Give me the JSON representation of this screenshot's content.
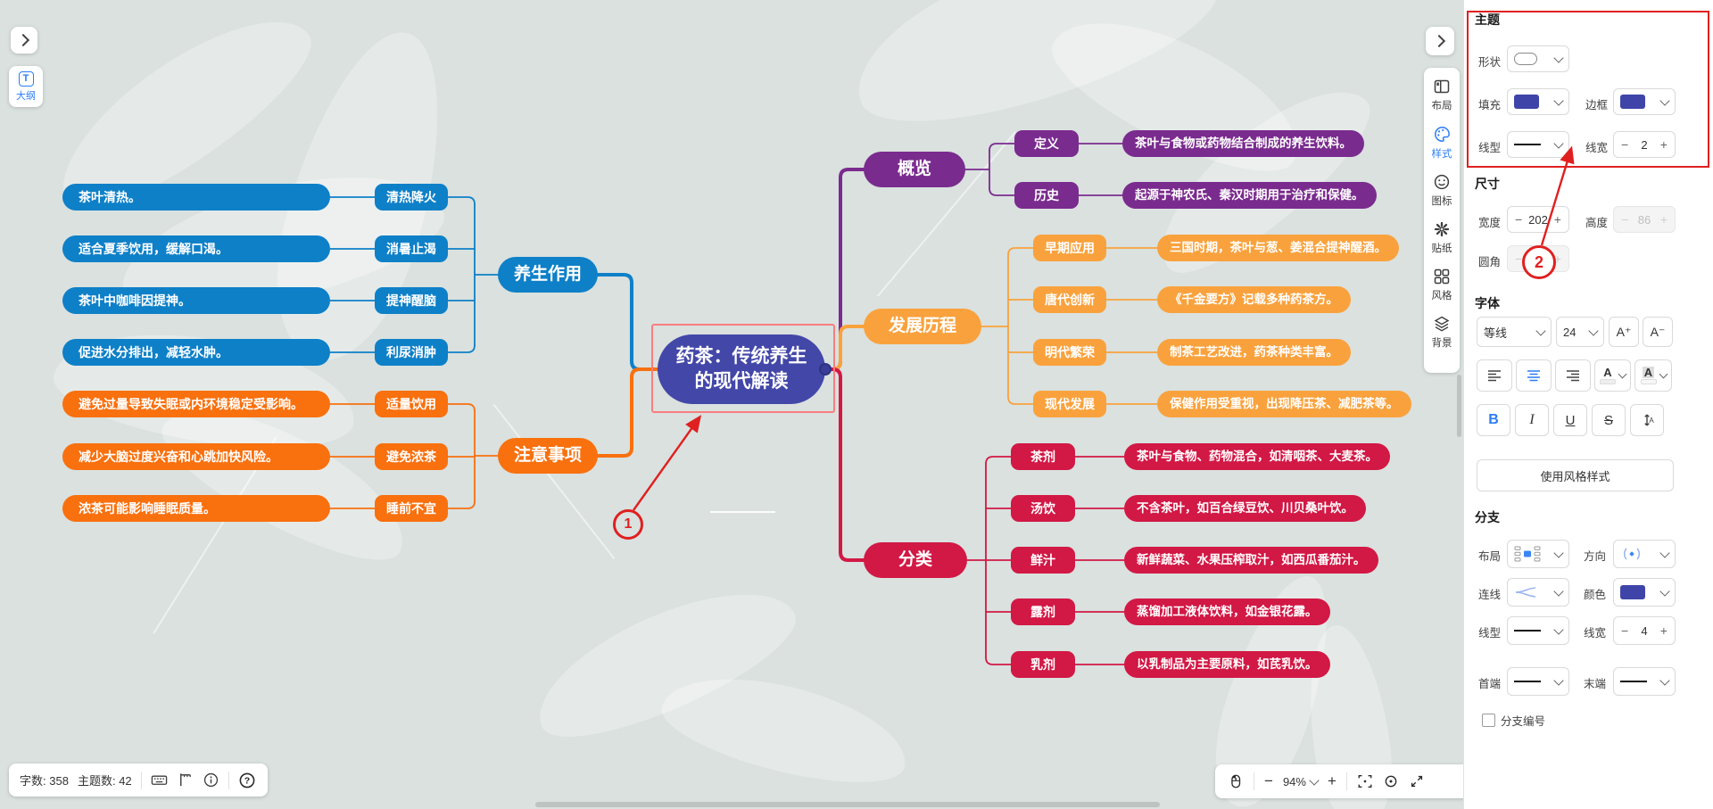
{
  "ui": {
    "minus": "−",
    "plus": "+"
  },
  "outline_button": {
    "icon": "T",
    "label": "大纲"
  },
  "toolbar": {
    "items": [
      {
        "label": "布局"
      },
      {
        "label": "样式",
        "active": true
      },
      {
        "label": "图标"
      },
      {
        "label": "贴纸"
      },
      {
        "label": "风格"
      },
      {
        "label": "背景"
      }
    ]
  },
  "panel": {
    "theme": {
      "title": "主题",
      "shape_label": "形状",
      "fill_label": "填充",
      "border_label": "边框",
      "line_type_label": "线型",
      "line_width_label": "线宽",
      "line_width_value": "2"
    },
    "size": {
      "title": "尺寸",
      "width_label": "宽度",
      "width_value": "202",
      "height_label": "高度",
      "height_value": "86",
      "radius_label": "圆角"
    },
    "font": {
      "title": "字体",
      "family": "等线",
      "size": "24",
      "increase": "A⁺",
      "decrease": "A⁻",
      "bold": "B",
      "italic": "I",
      "underline": "U",
      "strike": "S"
    },
    "use_style_button": "使用风格样式",
    "branch": {
      "title": "分支",
      "layout_label": "布局",
      "direction_label": "方向",
      "line_label": "连线",
      "color_label": "颜色",
      "line_type_label": "线型",
      "line_width_label": "线宽",
      "line_width_value": "4",
      "start_label": "首端",
      "end_label": "末端",
      "numbering_label": "分支编号"
    }
  },
  "status_bar": {
    "word_count_label": "字数:",
    "word_count": "358",
    "topic_count_label": "主题数:",
    "topic_count": "42"
  },
  "zoom_bar": {
    "zoom": "94%"
  },
  "annotations": {
    "mark1": "1",
    "mark2": "2"
  },
  "colors": {
    "accent": "#2B7CF6",
    "fill_swatch": "#3F45A8",
    "annotation_red": "#E02020",
    "selection_red": "#F87E7E",
    "central": "#4347A8",
    "blue": "#0E80C8",
    "orange": "#F9700E",
    "light_orange": "#F9A23D",
    "purple": "#7A2B8E",
    "crimson": "#D21845"
  },
  "mindmap": {
    "central": {
      "text": "药茶：传统养生的现代解读"
    },
    "left_branches": [
      {
        "label": "养生作用",
        "color": "#0E80C8",
        "children": [
          {
            "label": "清热降火",
            "note": "茶叶清热。"
          },
          {
            "label": "消暑止渴",
            "note": "适合夏季饮用，缓解口渴。"
          },
          {
            "label": "提神醒脑",
            "note": "茶叶中咖啡因提神。"
          },
          {
            "label": "利尿消肿",
            "note": "促进水分排出，减轻水肿。"
          }
        ]
      },
      {
        "label": "注意事项",
        "color": "#F9700E",
        "children": [
          {
            "label": "适量饮用",
            "note": "避免过量导致失眠或内环境稳定受影响。"
          },
          {
            "label": "避免浓茶",
            "note": "减少大脑过度兴奋和心跳加快风险。"
          },
          {
            "label": "睡前不宜",
            "note": "浓茶可能影响睡眠质量。"
          }
        ]
      }
    ],
    "right_branches": [
      {
        "label": "概览",
        "color": "#7A2B8E",
        "children": [
          {
            "label": "定义",
            "note": "茶叶与食物或药物结合制成的养生饮料。"
          },
          {
            "label": "历史",
            "note": "起源于神农氏、秦汉时期用于治疗和保健。"
          }
        ]
      },
      {
        "label": "发展历程",
        "color": "#F9A23D",
        "children": [
          {
            "label": "早期应用",
            "note": "三国时期，茶叶与葱、姜混合提神醒酒。"
          },
          {
            "label": "唐代创新",
            "note": "《千金要方》记载多种药茶方。"
          },
          {
            "label": "明代繁荣",
            "note": "制茶工艺改进，药茶种类丰富。"
          },
          {
            "label": "现代发展",
            "note": "保健作用受重视，出现降压茶、减肥茶等。"
          }
        ]
      },
      {
        "label": "分类",
        "color": "#D21845",
        "children": [
          {
            "label": "茶剂",
            "note": "茶叶与食物、药物混合，如清咽茶、大麦茶。"
          },
          {
            "label": "汤饮",
            "note": "不含茶叶，如百合绿豆饮、川贝桑叶饮。"
          },
          {
            "label": "鲜汁",
            "note": "新鲜蔬菜、水果压榨取汁，如西瓜番茄汁。"
          },
          {
            "label": "露剂",
            "note": "蒸馏加工液体饮料，如金银花露。"
          },
          {
            "label": "乳剂",
            "note": "以乳制品为主要原料，如芪乳饮。"
          }
        ]
      }
    ]
  }
}
